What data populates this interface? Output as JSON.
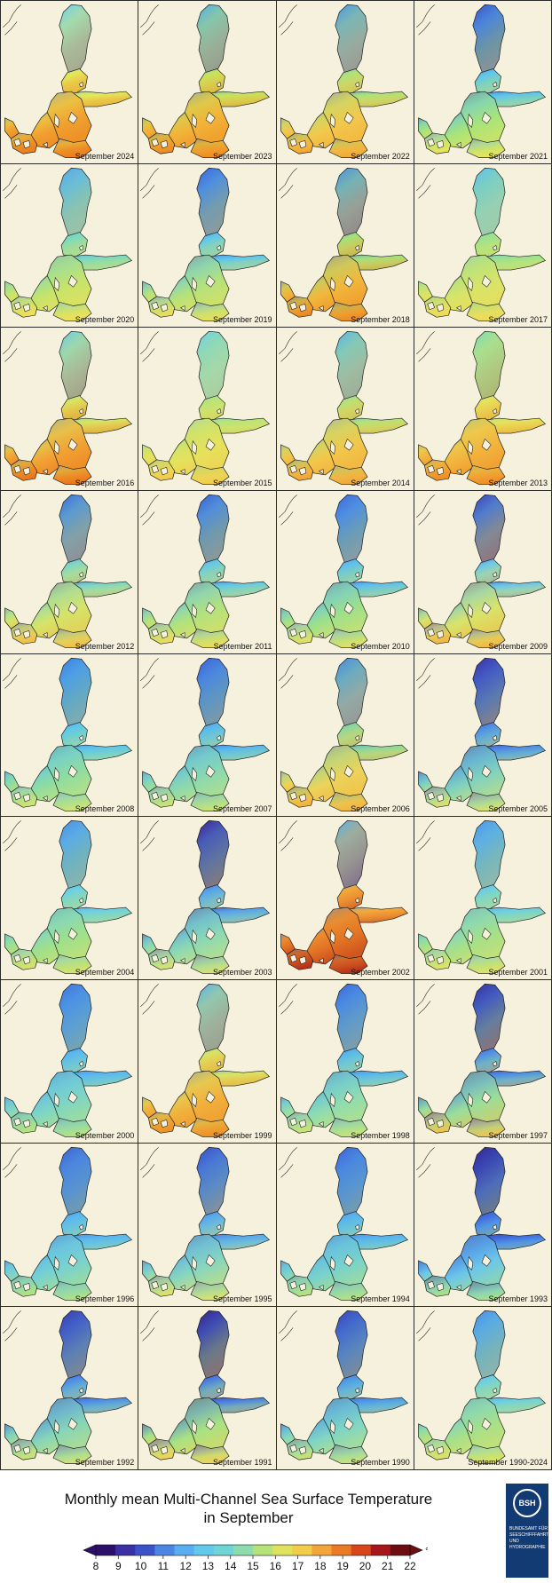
{
  "tiles": [
    {
      "label": "September 2024",
      "palette": [
        "#6fcff0",
        "#e4e85a",
        "#f0a030",
        "#eb7f1d"
      ]
    },
    {
      "label": "September 2023",
      "palette": [
        "#50aee8",
        "#c7e35e",
        "#f2b238",
        "#ee8c22"
      ]
    },
    {
      "label": "September 2022",
      "palette": [
        "#4f93e6",
        "#aee27a",
        "#f2c84d",
        "#f3a935"
      ]
    },
    {
      "label": "September 2021",
      "palette": [
        "#3d52c8",
        "#5ec4ee",
        "#a8e47a",
        "#e9e35c"
      ]
    },
    {
      "label": "September 2020",
      "palette": [
        "#5aa8ea",
        "#7ed8c0",
        "#c6e46a",
        "#eee05a"
      ]
    },
    {
      "label": "September 2019",
      "palette": [
        "#3f62d6",
        "#60c6ec",
        "#b6e27a",
        "#e6de5c"
      ]
    },
    {
      "label": "September 2018",
      "palette": [
        "#4d8ee2",
        "#a6e07c",
        "#f2b63c",
        "#ec8b23"
      ]
    },
    {
      "label": "September 2017",
      "palette": [
        "#5fc0ee",
        "#9de28e",
        "#d8e468",
        "#eedb58"
      ]
    },
    {
      "label": "September 2016",
      "palette": [
        "#6dcce8",
        "#d8e462",
        "#f2a234",
        "#e9781b"
      ]
    },
    {
      "label": "September 2015",
      "palette": [
        "#6fd0e8",
        "#b8e47a",
        "#e6e25c",
        "#f2cb4c"
      ]
    },
    {
      "label": "September 2014",
      "palette": [
        "#5ab4ea",
        "#b6e27a",
        "#f2c64a",
        "#f1a83a"
      ]
    },
    {
      "label": "September 2013",
      "palette": [
        "#79dcb8",
        "#e6e25c",
        "#f2b43e",
        "#ee8e26"
      ]
    },
    {
      "label": "September 2012",
      "palette": [
        "#3e6ad8",
        "#7fd6c4",
        "#d6e46a",
        "#f0c04a"
      ]
    },
    {
      "label": "September 2011",
      "palette": [
        "#3e5ecf",
        "#68c8e6",
        "#b2e27e",
        "#e8dc5c"
      ]
    },
    {
      "label": "September 2010",
      "palette": [
        "#3f66d8",
        "#60bfee",
        "#9ee08a",
        "#e2e066"
      ]
    },
    {
      "label": "September 2009",
      "palette": [
        "#3b3fb6",
        "#6cc6ea",
        "#d8e46a",
        "#f2b844"
      ]
    },
    {
      "label": "September 2008",
      "palette": [
        "#3f7ee0",
        "#5fc6ec",
        "#8fdca0",
        "#cfe474"
      ]
    },
    {
      "label": "September 2007",
      "palette": [
        "#3d5fd2",
        "#5ab8ee",
        "#8ad8b0",
        "#c8e274"
      ]
    },
    {
      "label": "September 2006",
      "palette": [
        "#4a86e2",
        "#8ed89a",
        "#ecd35a",
        "#f2b440"
      ]
    },
    {
      "label": "September 2005",
      "palette": [
        "#3a2fa5",
        "#4f8ee6",
        "#7fd2c0",
        "#d8e270"
      ]
    },
    {
      "label": "September 2004",
      "palette": [
        "#4a8ee6",
        "#6fcfe4",
        "#9fe08c",
        "#d6e26c"
      ]
    },
    {
      "label": "September 2003",
      "palette": [
        "#3c228e",
        "#58a2ea",
        "#8bd8b4",
        "#d6e272"
      ]
    },
    {
      "label": "September 2002",
      "palette": [
        "#5ab0ec",
        "#f2a83c",
        "#e37424",
        "#b8321a"
      ]
    },
    {
      "label": "September 2001",
      "palette": [
        "#4f96e8",
        "#6fcfe0",
        "#a6e088",
        "#dce26a"
      ]
    },
    {
      "label": "September 2000",
      "palette": [
        "#3f72dc",
        "#5ab8ee",
        "#7fd6c4",
        "#b6e27e"
      ]
    },
    {
      "label": "September 1999",
      "palette": [
        "#5ab0ea",
        "#d8e466",
        "#f2b03c",
        "#ec9228"
      ]
    },
    {
      "label": "September 1998",
      "palette": [
        "#3e66d8",
        "#5ab8ec",
        "#8edcb0",
        "#c8e276"
      ]
    },
    {
      "label": "September 1997",
      "palette": [
        "#392f9e",
        "#4f8ee6",
        "#9ade9a",
        "#ecc451"
      ]
    },
    {
      "label": "September 1996",
      "palette": [
        "#3e5ed2",
        "#5ab6ee",
        "#78d2d0",
        "#b2e280"
      ]
    },
    {
      "label": "September 1995",
      "palette": [
        "#3a4ec4",
        "#5aa8ec",
        "#86d6c0",
        "#dce26a"
      ]
    },
    {
      "label": "September 1994",
      "palette": [
        "#3e62d6",
        "#58b2ee",
        "#78d2cc",
        "#b6e27e"
      ]
    },
    {
      "label": "September 1993",
      "palette": [
        "#37258f",
        "#3f70de",
        "#6cc6ea",
        "#a8e088"
      ]
    },
    {
      "label": "September 1992",
      "palette": [
        "#3a3aae",
        "#4f8ee6",
        "#86d6b8",
        "#cde274"
      ]
    },
    {
      "label": "September 1991",
      "palette": [
        "#36228a",
        "#4a80e2",
        "#a8e284",
        "#eed45a"
      ]
    },
    {
      "label": "September 1990",
      "palette": [
        "#3a43b8",
        "#4f9ae8",
        "#80d6c4",
        "#c8e278"
      ]
    },
    {
      "label": "September 1990-2024",
      "palette": [
        "#4a8ee6",
        "#6fcfe0",
        "#a8e088",
        "#dce26a"
      ]
    }
  ],
  "title": {
    "line1": "Monthly mean Multi-Channel Sea Surface Temperature",
    "line2": "in September"
  },
  "colorbar": {
    "unit": "°C",
    "ticks": [
      "8",
      "9",
      "10",
      "11",
      "12",
      "13",
      "14",
      "15",
      "16",
      "17",
      "18",
      "19",
      "20",
      "21",
      "22"
    ],
    "colors": [
      "#2b0f6b",
      "#3a2fa5",
      "#3b52c9",
      "#4a86e2",
      "#58aef0",
      "#62c8ec",
      "#6fd4d4",
      "#8ddcae",
      "#b6e27a",
      "#dee25c",
      "#f2cd4b",
      "#f2a63a",
      "#eb7a24",
      "#d9461c",
      "#a5171a",
      "#6d0d12"
    ]
  },
  "logo": {
    "abbr": "BSH",
    "line1": "BUNDESAMT FÜR",
    "line2": "SEESCHIFFFAHRT",
    "line3": "UND",
    "line4": "HYDROGRAPHIE"
  },
  "colors": {
    "land": "#f5f1dc",
    "coast": "#1a1a1a"
  }
}
